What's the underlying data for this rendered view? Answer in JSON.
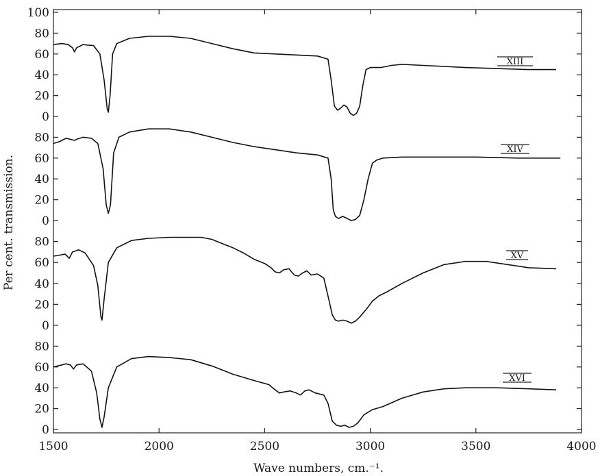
{
  "chart_data": {
    "type": "line",
    "title": "",
    "xlabel": "Wave numbers, cm.⁻¹.",
    "ylabel": "Per cent. transmission.",
    "xlim": [
      1500,
      4000
    ],
    "x_ticks": [
      "1500",
      "2000",
      "2500",
      "3000",
      "3500",
      "4000"
    ],
    "panel_y_ticks": [
      [
        "100",
        "80",
        "60",
        "40",
        "20",
        "0"
      ],
      [
        "80",
        "60",
        "40",
        "20",
        "0"
      ],
      [
        "80",
        "60",
        "40",
        "20",
        "0"
      ],
      [
        "80",
        "60",
        "40",
        "20",
        "0"
      ]
    ],
    "grid": false,
    "series": [
      {
        "name": "XIII",
        "ylim": [
          0,
          100
        ],
        "points": [
          [
            1500,
            69
          ],
          [
            1540,
            70
          ],
          [
            1570,
            69
          ],
          [
            1590,
            66
          ],
          [
            1600,
            62
          ],
          [
            1610,
            66
          ],
          [
            1640,
            69
          ],
          [
            1690,
            68
          ],
          [
            1720,
            60
          ],
          [
            1740,
            35
          ],
          [
            1755,
            7
          ],
          [
            1760,
            4
          ],
          [
            1768,
            20
          ],
          [
            1780,
            60
          ],
          [
            1800,
            70
          ],
          [
            1860,
            75
          ],
          [
            1950,
            77
          ],
          [
            2050,
            77
          ],
          [
            2150,
            75
          ],
          [
            2250,
            70
          ],
          [
            2350,
            65
          ],
          [
            2450,
            61
          ],
          [
            2550,
            60
          ],
          [
            2650,
            59
          ],
          [
            2750,
            58
          ],
          [
            2800,
            55
          ],
          [
            2815,
            35
          ],
          [
            2830,
            10
          ],
          [
            2845,
            6
          ],
          [
            2860,
            8
          ],
          [
            2875,
            11
          ],
          [
            2890,
            9
          ],
          [
            2905,
            3
          ],
          [
            2920,
            1
          ],
          [
            2935,
            3
          ],
          [
            2950,
            10
          ],
          [
            2965,
            30
          ],
          [
            2980,
            45
          ],
          [
            3000,
            47
          ],
          [
            3050,
            47
          ],
          [
            3100,
            49
          ],
          [
            3150,
            50
          ],
          [
            3250,
            49
          ],
          [
            3350,
            48
          ],
          [
            3450,
            47
          ],
          [
            3600,
            46
          ],
          [
            3750,
            45
          ],
          [
            3880,
            45
          ]
        ]
      },
      {
        "name": "XIV",
        "ylim": [
          0,
          100
        ],
        "points": [
          [
            1500,
            74
          ],
          [
            1530,
            76
          ],
          [
            1560,
            79
          ],
          [
            1600,
            77
          ],
          [
            1610,
            78
          ],
          [
            1640,
            80
          ],
          [
            1680,
            79
          ],
          [
            1710,
            74
          ],
          [
            1735,
            50
          ],
          [
            1750,
            15
          ],
          [
            1760,
            7
          ],
          [
            1770,
            15
          ],
          [
            1785,
            65
          ],
          [
            1810,
            80
          ],
          [
            1860,
            85
          ],
          [
            1950,
            88
          ],
          [
            2050,
            88
          ],
          [
            2150,
            85
          ],
          [
            2250,
            80
          ],
          [
            2350,
            75
          ],
          [
            2450,
            71
          ],
          [
            2550,
            68
          ],
          [
            2650,
            65
          ],
          [
            2750,
            63
          ],
          [
            2800,
            60
          ],
          [
            2815,
            40
          ],
          [
            2825,
            10
          ],
          [
            2835,
            4
          ],
          [
            2850,
            2
          ],
          [
            2870,
            4
          ],
          [
            2890,
            2
          ],
          [
            2910,
            0
          ],
          [
            2930,
            1
          ],
          [
            2950,
            5
          ],
          [
            2970,
            20
          ],
          [
            2990,
            40
          ],
          [
            3010,
            55
          ],
          [
            3030,
            58
          ],
          [
            3060,
            60
          ],
          [
            3150,
            61
          ],
          [
            3300,
            61
          ],
          [
            3500,
            61
          ],
          [
            3700,
            60
          ],
          [
            3900,
            60
          ]
        ]
      },
      {
        "name": "XV",
        "ylim": [
          0,
          100
        ],
        "points": [
          [
            1500,
            66
          ],
          [
            1530,
            67
          ],
          [
            1555,
            68
          ],
          [
            1575,
            64
          ],
          [
            1590,
            70
          ],
          [
            1620,
            72
          ],
          [
            1650,
            69
          ],
          [
            1690,
            57
          ],
          [
            1710,
            38
          ],
          [
            1725,
            8
          ],
          [
            1730,
            5
          ],
          [
            1740,
            25
          ],
          [
            1760,
            60
          ],
          [
            1800,
            74
          ],
          [
            1870,
            81
          ],
          [
            1950,
            83
          ],
          [
            2050,
            84
          ],
          [
            2150,
            84
          ],
          [
            2200,
            84
          ],
          [
            2250,
            82
          ],
          [
            2300,
            78
          ],
          [
            2350,
            74
          ],
          [
            2400,
            69
          ],
          [
            2450,
            63
          ],
          [
            2500,
            59
          ],
          [
            2530,
            55
          ],
          [
            2550,
            51
          ],
          [
            2570,
            50
          ],
          [
            2590,
            53
          ],
          [
            2615,
            54
          ],
          [
            2640,
            48
          ],
          [
            2660,
            47
          ],
          [
            2680,
            50
          ],
          [
            2700,
            52
          ],
          [
            2720,
            48
          ],
          [
            2750,
            49
          ],
          [
            2780,
            45
          ],
          [
            2800,
            28
          ],
          [
            2820,
            10
          ],
          [
            2835,
            5
          ],
          [
            2850,
            4
          ],
          [
            2870,
            5
          ],
          [
            2890,
            4
          ],
          [
            2910,
            2
          ],
          [
            2930,
            4
          ],
          [
            2950,
            8
          ],
          [
            2980,
            15
          ],
          [
            3010,
            23
          ],
          [
            3040,
            28
          ],
          [
            3080,
            32
          ],
          [
            3150,
            40
          ],
          [
            3250,
            50
          ],
          [
            3350,
            58
          ],
          [
            3450,
            61
          ],
          [
            3550,
            61
          ],
          [
            3650,
            58
          ],
          [
            3750,
            55
          ],
          [
            3880,
            54
          ]
        ]
      },
      {
        "name": "XVI",
        "ylim": [
          0,
          100
        ],
        "points": [
          [
            1500,
            60
          ],
          [
            1540,
            62
          ],
          [
            1560,
            63
          ],
          [
            1580,
            62
          ],
          [
            1595,
            58
          ],
          [
            1610,
            62
          ],
          [
            1640,
            63
          ],
          [
            1680,
            56
          ],
          [
            1705,
            35
          ],
          [
            1720,
            10
          ],
          [
            1730,
            2
          ],
          [
            1740,
            12
          ],
          [
            1760,
            40
          ],
          [
            1800,
            60
          ],
          [
            1870,
            68
          ],
          [
            1950,
            70
          ],
          [
            2050,
            69
          ],
          [
            2150,
            67
          ],
          [
            2250,
            61
          ],
          [
            2350,
            53
          ],
          [
            2450,
            47
          ],
          [
            2520,
            43
          ],
          [
            2550,
            38
          ],
          [
            2570,
            35
          ],
          [
            2590,
            36
          ],
          [
            2620,
            37
          ],
          [
            2650,
            35
          ],
          [
            2670,
            33
          ],
          [
            2690,
            37
          ],
          [
            2710,
            38
          ],
          [
            2740,
            35
          ],
          [
            2780,
            33
          ],
          [
            2800,
            25
          ],
          [
            2820,
            8
          ],
          [
            2840,
            4
          ],
          [
            2860,
            3
          ],
          [
            2880,
            4
          ],
          [
            2900,
            2
          ],
          [
            2920,
            3
          ],
          [
            2940,
            6
          ],
          [
            2970,
            14
          ],
          [
            3010,
            19
          ],
          [
            3060,
            22
          ],
          [
            3150,
            30
          ],
          [
            3250,
            36
          ],
          [
            3350,
            39
          ],
          [
            3450,
            40
          ],
          [
            3600,
            40
          ],
          [
            3750,
            39
          ],
          [
            3880,
            38
          ]
        ]
      }
    ]
  }
}
